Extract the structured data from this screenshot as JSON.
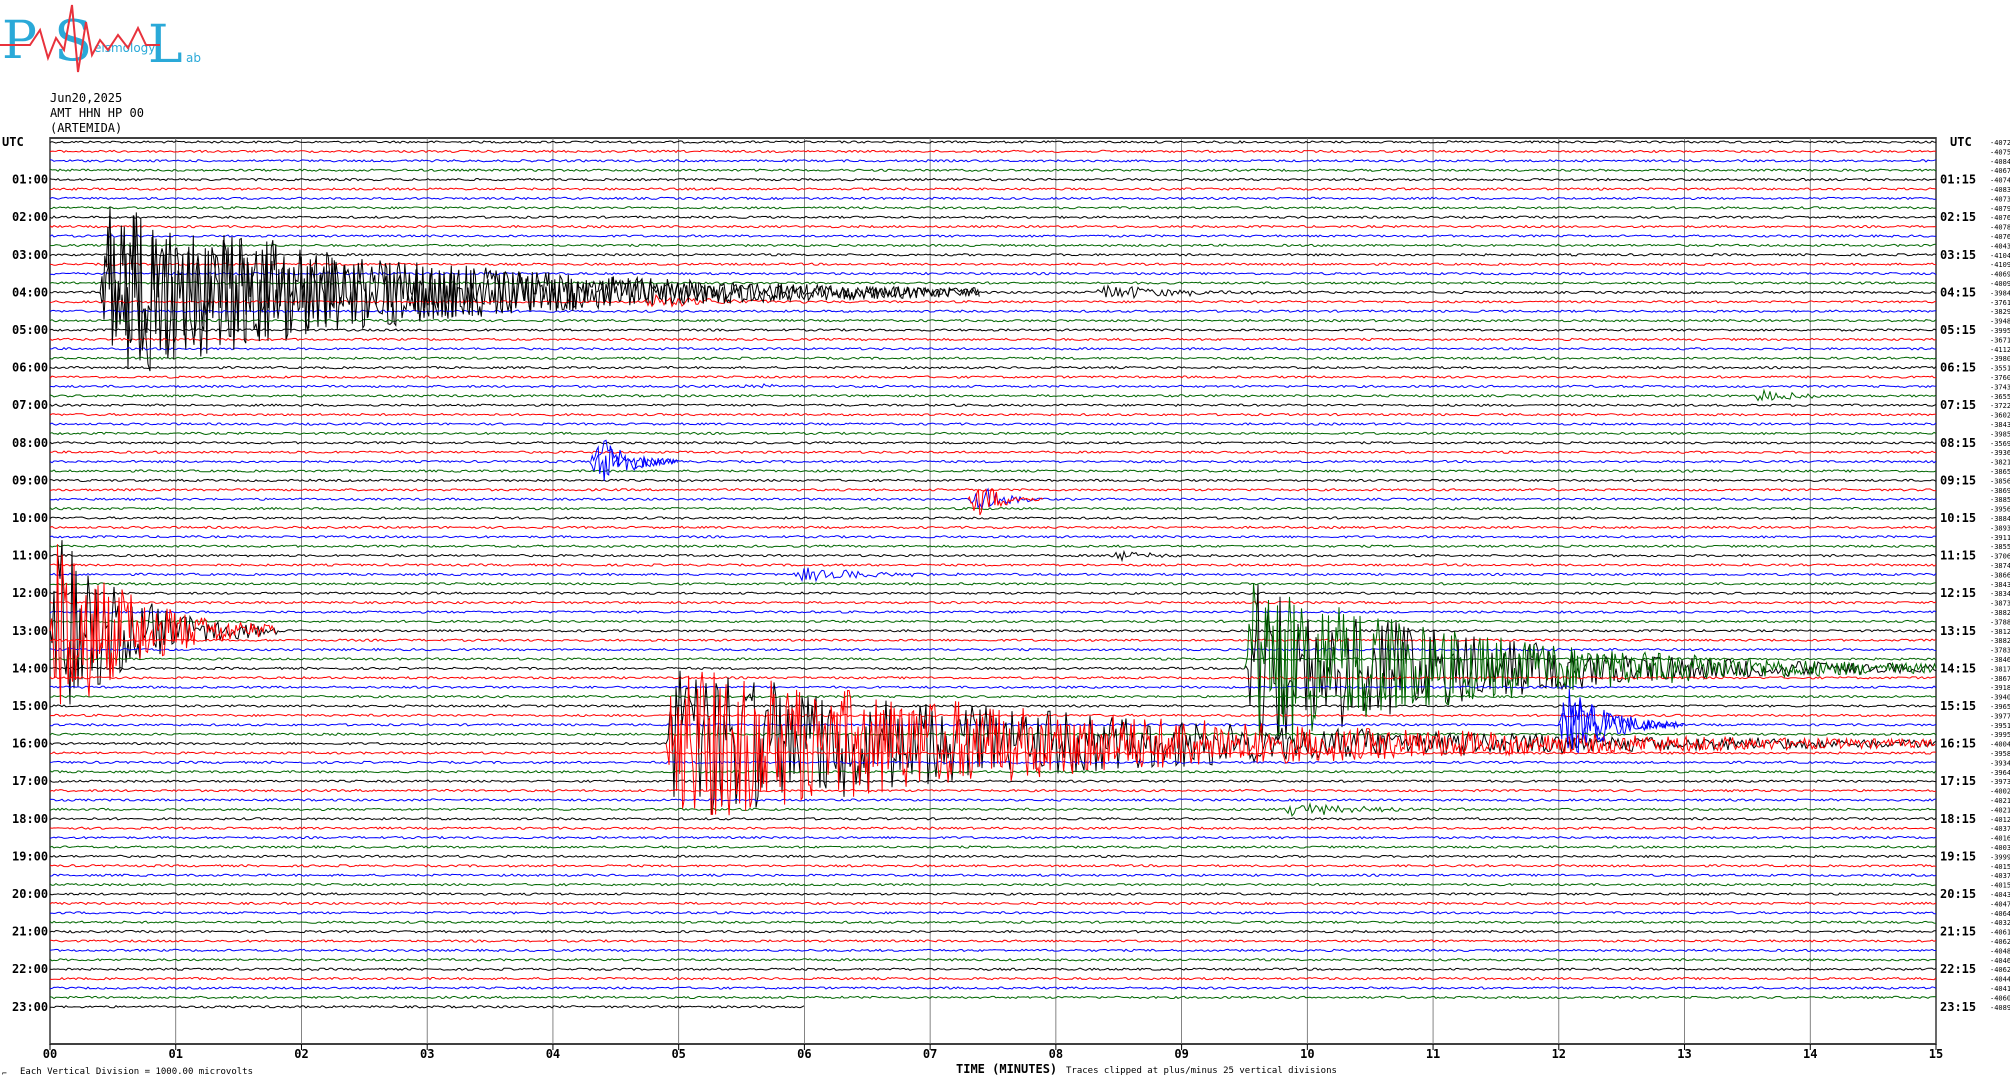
{
  "logo": {
    "letters": [
      "P",
      "S",
      "L"
    ],
    "small_words": [
      "eismology",
      "ab"
    ],
    "colors": {
      "letters": "#2aa9d8",
      "trace": "#e8323c"
    }
  },
  "header": {
    "date": "Jun20,2025",
    "channel": "AMT HHN HP 00",
    "station": "(ARTEMIDA)"
  },
  "chart_data": {
    "type": "line",
    "title": "",
    "left_label": "UTC",
    "right_label": "UTC",
    "xlabel": "TIME (MINUTES)",
    "xlim": [
      0,
      15
    ],
    "x_ticks": [
      "00",
      "01",
      "02",
      "03",
      "04",
      "05",
      "06",
      "07",
      "08",
      "09",
      "10",
      "11",
      "12",
      "13",
      "14",
      "15"
    ],
    "left_hour_labels": [
      "01:00",
      "02:00",
      "03:00",
      "04:00",
      "05:00",
      "06:00",
      "07:00",
      "08:00",
      "09:00",
      "10:00",
      "11:00",
      "12:00",
      "13:00",
      "14:00",
      "15:00",
      "16:00",
      "17:00",
      "18:00",
      "19:00",
      "20:00",
      "21:00",
      "22:00",
      "23:00"
    ],
    "right_hour_labels": [
      "01:15",
      "02:15",
      "03:15",
      "04:15",
      "05:15",
      "06:15",
      "07:15",
      "08:15",
      "09:15",
      "10:15",
      "11:15",
      "12:15",
      "13:15",
      "14:15",
      "15:15",
      "16:15",
      "17:15",
      "18:15",
      "19:15",
      "20:15",
      "21:15",
      "22:15",
      "23:15"
    ],
    "trace_colors": [
      "#000000",
      "#ff0000",
      "#0000ff",
      "#006600"
    ],
    "trace_count": 93,
    "last_trace_end_minute": 6.0,
    "grid": true,
    "offsets": [
      "-4072",
      "-4075",
      "-4084",
      "-4067",
      "-4074",
      "-4083",
      "-4073",
      "-4079",
      "-4076",
      "-4078",
      "-4076",
      "-4043",
      "-4104",
      "-4109",
      "-4069",
      "-4009",
      "-3984",
      "-3761",
      "-3829",
      "-3948",
      "-3995",
      "-3671",
      "-4112",
      "-3980",
      "-3551",
      "-3760",
      "-3743",
      "-3655",
      "-3722",
      "-3602",
      "-3843",
      "-3985",
      "-3569",
      "-3936",
      "-3821",
      "-3865",
      "-3856",
      "-3869",
      "-3885",
      "-3956",
      "-3884",
      "-3893",
      "-3911",
      "-3855",
      "-3706",
      "-3874",
      "-3866",
      "-3843",
      "-3834",
      "-3873",
      "-3882",
      "-3788",
      "-3812",
      "-3882",
      "-3783",
      "-3846",
      "-3817",
      "-3867",
      "-3918",
      "-3940",
      "-3965",
      "-3977",
      "-3951",
      "-3995",
      "-4004",
      "-3958",
      "-3934",
      "-3964",
      "-3973",
      "-4002",
      "-4021",
      "-4021",
      "-4012",
      "-4037",
      "-4016",
      "-4003",
      "-3999",
      "-4015",
      "-4037",
      "-4015",
      "-4043",
      "-4047",
      "-4064",
      "-4032",
      "-4061",
      "-4062",
      "-4048",
      "-4046",
      "-4062",
      "-4044",
      "-4041",
      "-4060",
      "-4089"
    ],
    "events": [
      {
        "trace": 16,
        "start_minute": 0.4,
        "duration_minutes": 7.0,
        "amplitude": 10,
        "color_index": 0
      },
      {
        "trace": 17,
        "start_minute": 4.7,
        "duration_minutes": 1.5,
        "amplitude": 1,
        "color_index": 1
      },
      {
        "trace": 16,
        "start_minute": 8.3,
        "duration_minutes": 2.0,
        "amplitude": 1,
        "color_index": 1
      },
      {
        "trace": 26,
        "start_minute": 5.5,
        "duration_minutes": 0.4,
        "amplitude": 1,
        "color_index": 2
      },
      {
        "trace": 27,
        "start_minute": 13.5,
        "duration_minutes": 0.9,
        "amplitude": 1,
        "color_index": 3
      },
      {
        "trace": 34,
        "start_minute": 4.3,
        "duration_minutes": 0.7,
        "amplitude": 4,
        "color_index": 2
      },
      {
        "trace": 38,
        "start_minute": 7.3,
        "duration_minutes": 0.6,
        "amplitude": 3,
        "color_index": 1
      },
      {
        "trace": 44,
        "start_minute": 8.4,
        "duration_minutes": 0.7,
        "amplitude": 1,
        "color_index": 3
      },
      {
        "trace": 46,
        "start_minute": 5.9,
        "duration_minutes": 1.5,
        "amplitude": 1,
        "color_index": 2
      },
      {
        "trace": 52,
        "start_minute": 0.0,
        "duration_minutes": 1.8,
        "amplitude": 12,
        "color_index": 1
      },
      {
        "trace": 56,
        "start_minute": 9.5,
        "duration_minutes": 5.5,
        "amplitude": 10,
        "color_index": 3
      },
      {
        "trace": 64,
        "start_minute": 4.9,
        "duration_minutes": 10.1,
        "amplitude": 9,
        "color_index": 1
      },
      {
        "trace": 62,
        "start_minute": 12.0,
        "duration_minutes": 1.0,
        "amplitude": 5,
        "color_index": 2
      },
      {
        "trace": 71,
        "start_minute": 9.8,
        "duration_minutes": 1.5,
        "amplitude": 1,
        "color_index": 3
      }
    ]
  },
  "footer": {
    "scale_note": "Each Vertical Division = 1000.00 microvolts",
    "clip_note": "Traces clipped at plus/minus 25 vertical divisions",
    "corner_mark": "⌐"
  }
}
